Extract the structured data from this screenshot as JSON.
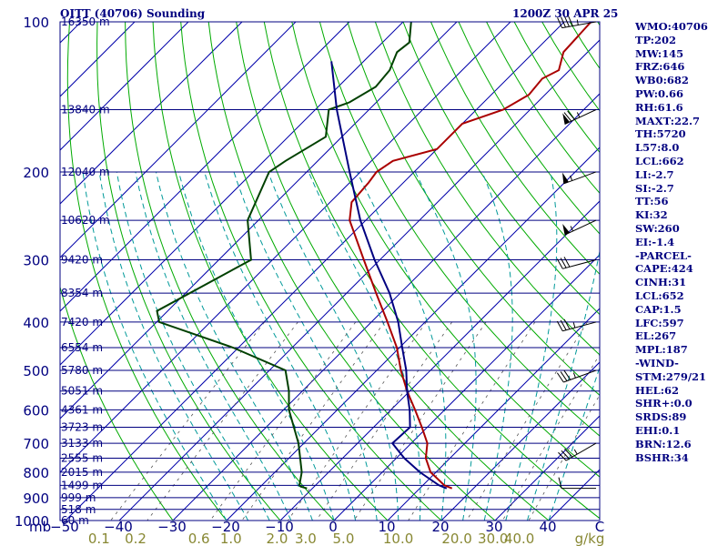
{
  "chart_data": {
    "type": "line",
    "title": "OITT (40706) Sounding",
    "subtitle": "1200Z 30 APR 25",
    "pressure_ticks": [
      100,
      200,
      300,
      400,
      500,
      600,
      700,
      800,
      900,
      1000
    ],
    "pressure_unit": "mb",
    "temperature_ticks": [
      -50,
      -40,
      -30,
      -20,
      -10,
      0,
      10,
      20,
      30,
      40
    ],
    "temperature_unit": "C",
    "mixing_ratio_ticks": [
      "0.1",
      "0.2",
      "0.6",
      "1.0",
      "2.0",
      "3.0",
      "5.0",
      "10.0",
      "20.0",
      "30.0",
      "40.0"
    ],
    "mixing_ratio_unit": "g/kg",
    "height_labels": [
      {
        "p": 100,
        "text": "16350 m"
      },
      {
        "p": 150,
        "text": "13840 m"
      },
      {
        "p": 200,
        "text": "12040 m"
      },
      {
        "p": 250,
        "text": "10620 m"
      },
      {
        "p": 300,
        "text": "9420 m"
      },
      {
        "p": 350,
        "text": "8354 m"
      },
      {
        "p": 400,
        "text": "7420 m"
      },
      {
        "p": 450,
        "text": "6554 m"
      },
      {
        "p": 500,
        "text": "5780 m"
      },
      {
        "p": 550,
        "text": "5051 m"
      },
      {
        "p": 600,
        "text": "4361 m"
      },
      {
        "p": 650,
        "text": "3723 m"
      },
      {
        "p": 700,
        "text": "3133 m"
      },
      {
        "p": 750,
        "text": "2555 m"
      },
      {
        "p": 800,
        "text": "2015 m"
      },
      {
        "p": 850,
        "text": "1499 m"
      },
      {
        "p": 900,
        "text": "999 m"
      },
      {
        "p": 950,
        "text": "518 m"
      },
      {
        "p": 1000,
        "text": "60 m"
      }
    ],
    "series": [
      {
        "kind": "temperature",
        "color": "#aa0000",
        "points": [
          {
            "p": 862,
            "t": 16.0
          },
          {
            "p": 850,
            "t": 14.0
          },
          {
            "p": 800,
            "t": 9.0
          },
          {
            "p": 750,
            "t": 5.5
          },
          {
            "p": 700,
            "t": 3.0
          },
          {
            "p": 650,
            "t": -1.0
          },
          {
            "p": 600,
            "t": -5.5
          },
          {
            "p": 550,
            "t": -10.5
          },
          {
            "p": 500,
            "t": -15.5
          },
          {
            "p": 450,
            "t": -20.5
          },
          {
            "p": 400,
            "t": -27.0
          },
          {
            "p": 350,
            "t": -34.5
          },
          {
            "p": 300,
            "t": -43.0
          },
          {
            "p": 250,
            "t": -53.0
          },
          {
            "p": 230,
            "t": -56.0
          },
          {
            "p": 210,
            "t": -56.5
          },
          {
            "p": 200,
            "t": -57.0
          },
          {
            "p": 190,
            "t": -56.0
          },
          {
            "p": 180,
            "t": -50.0
          },
          {
            "p": 160,
            "t": -50.0
          },
          {
            "p": 150,
            "t": -45.0
          },
          {
            "p": 140,
            "t": -43.0
          },
          {
            "p": 130,
            "t": -43.5
          },
          {
            "p": 125,
            "t": -42.0
          },
          {
            "p": 115,
            "t": -44.5
          },
          {
            "p": 100,
            "t": -45.0
          }
        ]
      },
      {
        "kind": "dewpoint",
        "color": "#004000",
        "points": [
          {
            "p": 862,
            "t": -11.0
          },
          {
            "p": 855,
            "t": -12.5
          },
          {
            "p": 850,
            "t": -13.0
          },
          {
            "p": 800,
            "t": -15.0
          },
          {
            "p": 700,
            "t": -21.0
          },
          {
            "p": 600,
            "t": -29.0
          },
          {
            "p": 550,
            "t": -32.5
          },
          {
            "p": 500,
            "t": -37.0
          },
          {
            "p": 450,
            "t": -51.0
          },
          {
            "p": 400,
            "t": -69.5
          },
          {
            "p": 380,
            "t": -72.0
          },
          {
            "p": 300,
            "t": -64.0
          },
          {
            "p": 250,
            "t": -72.0
          },
          {
            "p": 200,
            "t": -77.0
          },
          {
            "p": 190,
            "t": -76.0
          },
          {
            "p": 170,
            "t": -73.0
          },
          {
            "p": 150,
            "t": -77.5
          },
          {
            "p": 145,
            "t": -75.0
          },
          {
            "p": 135,
            "t": -73.0
          },
          {
            "p": 125,
            "t": -73.5
          },
          {
            "p": 115,
            "t": -75.5
          },
          {
            "p": 110,
            "t": -75.0
          },
          {
            "p": 100,
            "t": -78.5
          }
        ]
      },
      {
        "kind": "parcel",
        "color": "#000080",
        "points": [
          {
            "p": 862,
            "t": 15.0
          },
          {
            "p": 850,
            "t": 13.0
          },
          {
            "p": 800,
            "t": 7.0
          },
          {
            "p": 750,
            "t": 1.5
          },
          {
            "p": 700,
            "t": -3.5
          },
          {
            "p": 650,
            "t": -3.2
          },
          {
            "p": 600,
            "t": -6.5
          },
          {
            "p": 550,
            "t": -10.5
          },
          {
            "p": 500,
            "t": -14.5
          },
          {
            "p": 450,
            "t": -19.5
          },
          {
            "p": 400,
            "t": -25.0
          },
          {
            "p": 350,
            "t": -32.0
          },
          {
            "p": 300,
            "t": -41.0
          },
          {
            "p": 250,
            "t": -51.0
          },
          {
            "p": 200,
            "t": -62.0
          },
          {
            "p": 150,
            "t": -76.0
          },
          {
            "p": 120,
            "t": -86.0
          }
        ]
      }
    ],
    "wind_barbs": [
      {
        "p": 862,
        "dir": 270,
        "kt": 10
      },
      {
        "p": 700,
        "dir": 240,
        "kt": 35
      },
      {
        "p": 500,
        "dir": 250,
        "kt": 35
      },
      {
        "p": 400,
        "dir": 255,
        "kt": 35
      },
      {
        "p": 300,
        "dir": 255,
        "kt": 30
      },
      {
        "p": 250,
        "dir": 245,
        "kt": 55
      },
      {
        "p": 200,
        "dir": 250,
        "kt": 55
      },
      {
        "p": 150,
        "dir": 245,
        "kt": 75
      },
      {
        "p": 100,
        "dir": 260,
        "kt": 45
      }
    ],
    "grid": true
  },
  "stats": [
    "WMO:40706",
    "TP:202",
    "MW:145",
    "FRZ:646",
    "WB0:682",
    "PW:0.66",
    "RH:61.6",
    "MAXT:22.7",
    "TH:5720",
    "L57:8.0",
    "LCL:662",
    "LI:-2.7",
    "SI:-2.7",
    "TT:56",
    "KI:32",
    "SW:260",
    "EI:-1.4",
    "-PARCEL-",
    "CAPE:424",
    "CINH:31",
    "LCL:652",
    "CAP:1.5",
    "LFC:597",
    "EL:267",
    "MPL:187",
    "-WIND-",
    "STM:279/21",
    "HEL:62",
    "SHR+:0.0",
    "SRDS:89",
    "EHI:0.1",
    "BRN:12.6",
    "BSHR:34"
  ],
  "colors": {
    "isobar": "#000080",
    "isotherm": "#0000aa",
    "dry_adiabat": "#00aa00",
    "moist_adiabat": "#009999",
    "mixing_ratio": "#555555",
    "axis_label": "#000080",
    "mixing_label": "#888833"
  }
}
